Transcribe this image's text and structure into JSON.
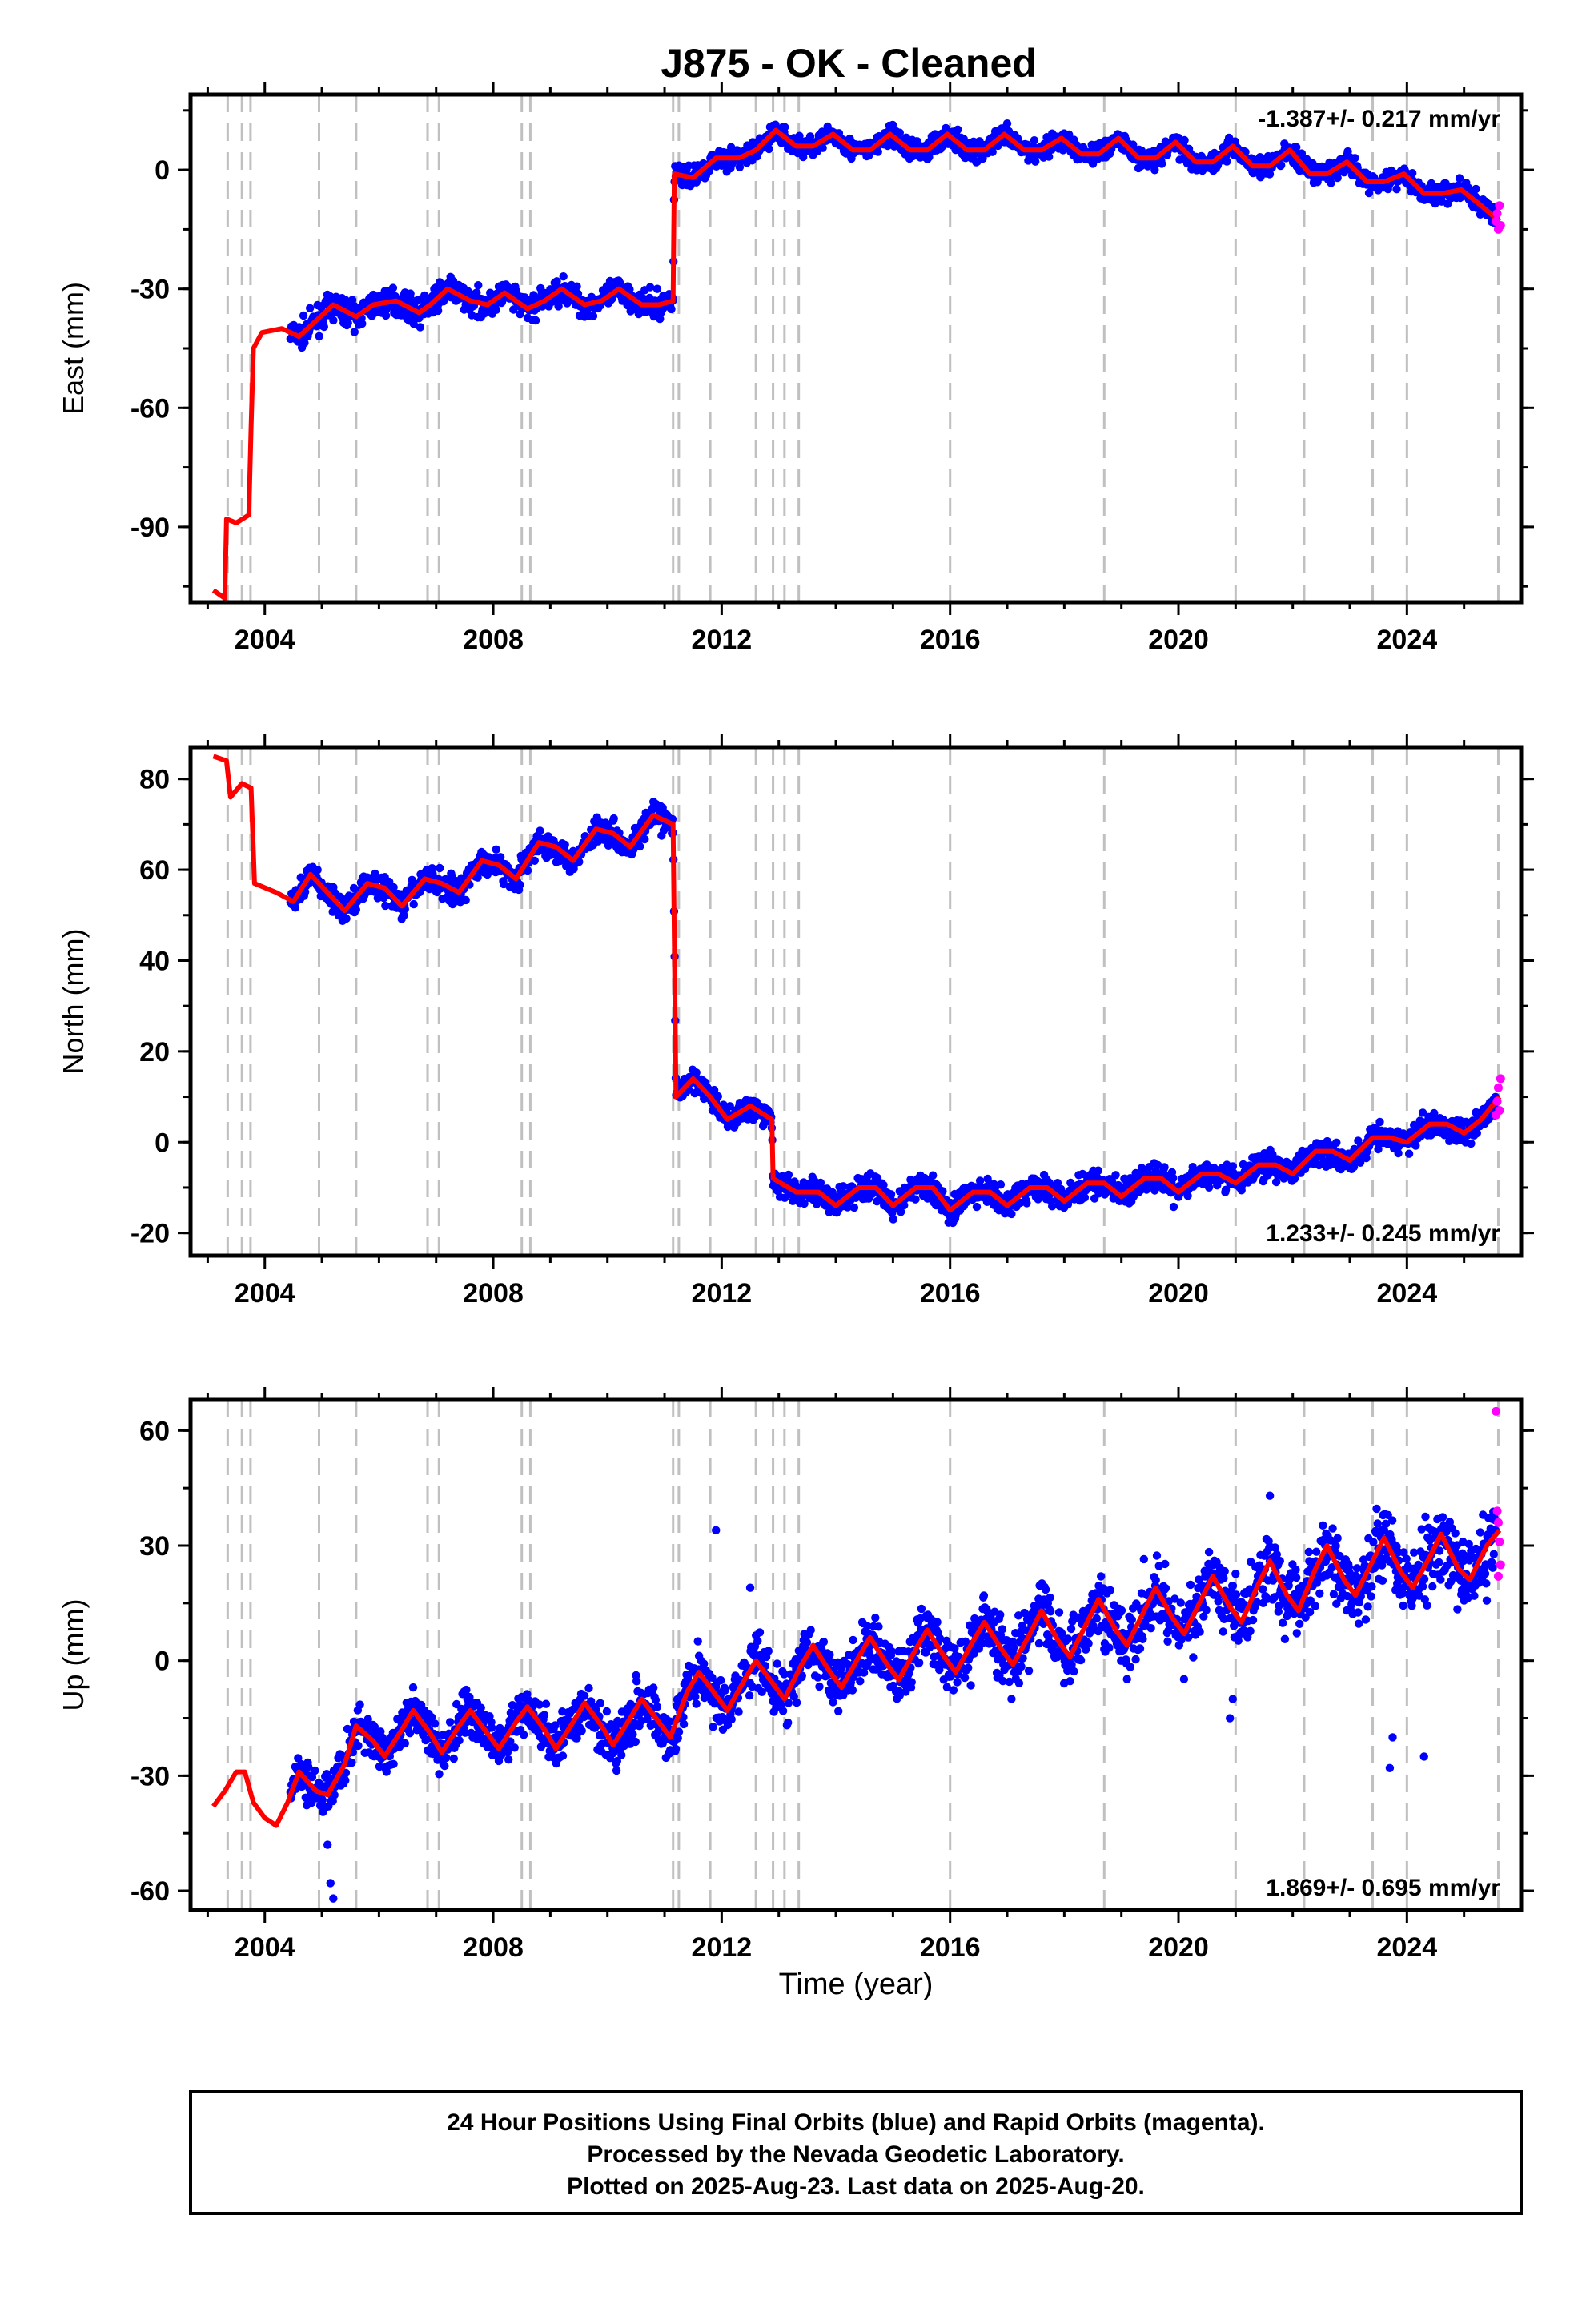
{
  "chart_data": {
    "type": "scatter",
    "title": "J875  - OK - Cleaned",
    "xlabel": "Time (year)",
    "xlim": [
      2002.7,
      2026.0
    ],
    "x_ticks": [
      2004,
      2008,
      2012,
      2016,
      2020,
      2024
    ],
    "colors": {
      "final": "#0000ff",
      "rapid": "#ff00ff",
      "model": "#ff0000",
      "event_lines": "#c0c0c0"
    },
    "event_lines": [
      2003.35,
      2003.6,
      2003.75,
      2004.95,
      2005.6,
      2006.85,
      2007.05,
      2008.5,
      2008.65,
      2011.15,
      2011.25,
      2011.8,
      2012.6,
      2012.9,
      2013.1,
      2013.35,
      2016.0,
      2018.7,
      2021.0,
      2022.2,
      2023.4,
      2024.0,
      2025.6
    ],
    "panels": [
      {
        "ylabel": "East (mm)",
        "ylim": [
          -109,
          19
        ],
        "y_ticks": [
          0,
          -30,
          -60,
          -90
        ],
        "rate": "-1.387+/- 0.217 mm/yr",
        "rate_position": "top-right",
        "model": [
          [
            2003.1,
            -106
          ],
          [
            2003.3,
            -108
          ],
          [
            2003.33,
            -88
          ],
          [
            2003.5,
            -89
          ],
          [
            2003.72,
            -87
          ],
          [
            2003.76,
            -65
          ],
          [
            2003.8,
            -45
          ],
          [
            2003.95,
            -41
          ],
          [
            2004.3,
            -40
          ],
          [
            2004.6,
            -42
          ],
          [
            2004.9,
            -38
          ],
          [
            2005.2,
            -34
          ],
          [
            2005.6,
            -37
          ],
          [
            2005.9,
            -34
          ],
          [
            2006.3,
            -33
          ],
          [
            2006.7,
            -36
          ],
          [
            2006.9,
            -34
          ],
          [
            2007.2,
            -30
          ],
          [
            2007.6,
            -33
          ],
          [
            2007.9,
            -34
          ],
          [
            2008.2,
            -31
          ],
          [
            2008.6,
            -35
          ],
          [
            2008.9,
            -33
          ],
          [
            2009.2,
            -30
          ],
          [
            2009.6,
            -34
          ],
          [
            2009.9,
            -33
          ],
          [
            2010.2,
            -30
          ],
          [
            2010.6,
            -34
          ],
          [
            2010.9,
            -34
          ],
          [
            2011.15,
            -33
          ],
          [
            2011.17,
            -1
          ],
          [
            2011.5,
            -2
          ],
          [
            2011.9,
            3
          ],
          [
            2012.3,
            3
          ],
          [
            2012.6,
            5
          ],
          [
            2012.95,
            10
          ],
          [
            2013.3,
            6
          ],
          [
            2013.6,
            6
          ],
          [
            2013.95,
            9
          ],
          [
            2014.3,
            5
          ],
          [
            2014.6,
            5
          ],
          [
            2014.95,
            9
          ],
          [
            2015.3,
            5
          ],
          [
            2015.6,
            5
          ],
          [
            2015.95,
            9
          ],
          [
            2016.3,
            5
          ],
          [
            2016.6,
            5
          ],
          [
            2016.95,
            9
          ],
          [
            2017.3,
            5
          ],
          [
            2017.6,
            5
          ],
          [
            2017.95,
            8
          ],
          [
            2018.3,
            4
          ],
          [
            2018.6,
            4
          ],
          [
            2018.95,
            8
          ],
          [
            2019.3,
            3
          ],
          [
            2019.6,
            3
          ],
          [
            2019.95,
            7
          ],
          [
            2020.3,
            2
          ],
          [
            2020.6,
            2
          ],
          [
            2020.95,
            6
          ],
          [
            2021.3,
            1
          ],
          [
            2021.6,
            1
          ],
          [
            2021.95,
            5
          ],
          [
            2022.3,
            -1
          ],
          [
            2022.6,
            -1
          ],
          [
            2022.95,
            2
          ],
          [
            2023.3,
            -3
          ],
          [
            2023.6,
            -3
          ],
          [
            2023.95,
            -1
          ],
          [
            2024.3,
            -6
          ],
          [
            2024.6,
            -6
          ],
          [
            2024.95,
            -5
          ],
          [
            2025.3,
            -9
          ],
          [
            2025.62,
            -13
          ]
        ],
        "data": {
          "x_start": 2004.45,
          "x_end": 2025.55,
          "jump_year": 2011.17,
          "before": {
            "intercept": -38,
            "slope": 0.8,
            "annual_amp": 2.0,
            "scatter": 2.5
          },
          "after": {
            "intercept": 2,
            "slope": -0.4,
            "annual_amp": 2.5,
            "scatter": 2.0
          },
          "rapid": [
            [
              2025.56,
              -13
            ],
            [
              2025.58,
              -11
            ],
            [
              2025.6,
              -15
            ],
            [
              2025.62,
              -9
            ],
            [
              2025.64,
              -14
            ]
          ]
        }
      },
      {
        "ylabel": "North (mm)",
        "ylim": [
          -25,
          87
        ],
        "y_ticks": [
          80,
          60,
          40,
          20,
          0,
          -20
        ],
        "rate": "1.233+/- 0.245 mm/yr",
        "rate_position": "bottom-right",
        "model": [
          [
            2003.1,
            85
          ],
          [
            2003.33,
            84
          ],
          [
            2003.4,
            76
          ],
          [
            2003.6,
            79
          ],
          [
            2003.76,
            78
          ],
          [
            2003.82,
            57
          ],
          [
            2004.2,
            55
          ],
          [
            2004.5,
            53
          ],
          [
            2004.8,
            59
          ],
          [
            2005.1,
            55
          ],
          [
            2005.4,
            51
          ],
          [
            2005.8,
            57
          ],
          [
            2006.1,
            56
          ],
          [
            2006.4,
            52
          ],
          [
            2006.8,
            58
          ],
          [
            2007.1,
            57
          ],
          [
            2007.4,
            55
          ],
          [
            2007.8,
            62
          ],
          [
            2008.1,
            61
          ],
          [
            2008.4,
            58
          ],
          [
            2008.8,
            66
          ],
          [
            2009.1,
            65
          ],
          [
            2009.4,
            62
          ],
          [
            2009.8,
            69
          ],
          [
            2010.1,
            68
          ],
          [
            2010.4,
            65
          ],
          [
            2010.8,
            72
          ],
          [
            2011.15,
            70
          ],
          [
            2011.2,
            10
          ],
          [
            2011.5,
            14
          ],
          [
            2011.8,
            10
          ],
          [
            2012.1,
            5
          ],
          [
            2012.5,
            8
          ],
          [
            2012.88,
            5
          ],
          [
            2012.9,
            -8
          ],
          [
            2013.3,
            -11
          ],
          [
            2013.7,
            -11
          ],
          [
            2014.0,
            -14
          ],
          [
            2014.4,
            -10
          ],
          [
            2014.7,
            -10
          ],
          [
            2015.0,
            -14
          ],
          [
            2015.4,
            -10
          ],
          [
            2015.7,
            -10
          ],
          [
            2016.0,
            -15
          ],
          [
            2016.4,
            -11
          ],
          [
            2016.7,
            -11
          ],
          [
            2017.0,
            -14
          ],
          [
            2017.4,
            -10
          ],
          [
            2017.7,
            -10
          ],
          [
            2018.0,
            -13
          ],
          [
            2018.4,
            -9
          ],
          [
            2018.7,
            -9
          ],
          [
            2019.0,
            -12
          ],
          [
            2019.4,
            -8
          ],
          [
            2019.7,
            -8
          ],
          [
            2020.0,
            -11
          ],
          [
            2020.4,
            -7
          ],
          [
            2020.7,
            -7
          ],
          [
            2021.0,
            -9
          ],
          [
            2021.4,
            -5
          ],
          [
            2021.7,
            -5
          ],
          [
            2022.0,
            -7
          ],
          [
            2022.4,
            -2
          ],
          [
            2022.7,
            -2
          ],
          [
            2023.0,
            -4
          ],
          [
            2023.4,
            1
          ],
          [
            2023.7,
            1
          ],
          [
            2024.0,
            0
          ],
          [
            2024.4,
            4
          ],
          [
            2024.7,
            4
          ],
          [
            2025.0,
            2
          ],
          [
            2025.3,
            5
          ],
          [
            2025.62,
            10
          ]
        ],
        "data": {
          "x_start": 2004.45,
          "x_end": 2025.55,
          "rapid": [
            [
              2025.56,
              6
            ],
            [
              2025.58,
              9
            ],
            [
              2025.6,
              12
            ],
            [
              2025.62,
              7
            ],
            [
              2025.64,
              14
            ]
          ]
        }
      },
      {
        "ylabel": "Up (mm)",
        "ylim": [
          -65,
          68
        ],
        "y_ticks": [
          60,
          30,
          0,
          -30,
          -60
        ],
        "rate": "1.869+/- 0.695 mm/yr",
        "rate_position": "bottom-right",
        "model": [
          [
            2003.1,
            -38
          ],
          [
            2003.3,
            -34
          ],
          [
            2003.5,
            -29
          ],
          [
            2003.65,
            -29
          ],
          [
            2003.8,
            -37
          ],
          [
            2004.0,
            -41
          ],
          [
            2004.2,
            -43
          ],
          [
            2004.4,
            -37
          ],
          [
            2004.6,
            -29
          ],
          [
            2004.9,
            -34
          ],
          [
            2005.1,
            -35
          ],
          [
            2005.4,
            -27
          ],
          [
            2005.6,
            -17
          ],
          [
            2005.9,
            -21
          ],
          [
            2006.1,
            -25
          ],
          [
            2006.4,
            -18
          ],
          [
            2006.6,
            -13
          ],
          [
            2006.9,
            -19
          ],
          [
            2007.1,
            -24
          ],
          [
            2007.4,
            -17
          ],
          [
            2007.6,
            -13
          ],
          [
            2007.9,
            -19
          ],
          [
            2008.1,
            -23
          ],
          [
            2008.4,
            -16
          ],
          [
            2008.6,
            -12
          ],
          [
            2008.9,
            -18
          ],
          [
            2009.1,
            -23
          ],
          [
            2009.4,
            -16
          ],
          [
            2009.6,
            -11
          ],
          [
            2009.9,
            -17
          ],
          [
            2010.1,
            -22
          ],
          [
            2010.4,
            -15
          ],
          [
            2010.6,
            -10
          ],
          [
            2010.9,
            -16
          ],
          [
            2011.1,
            -20
          ],
          [
            2011.4,
            -8
          ],
          [
            2011.6,
            -3
          ],
          [
            2011.9,
            -9
          ],
          [
            2012.1,
            -13
          ],
          [
            2012.4,
            -5
          ],
          [
            2012.6,
            0
          ],
          [
            2012.9,
            -6
          ],
          [
            2013.1,
            -10
          ],
          [
            2013.4,
            -1
          ],
          [
            2013.6,
            4
          ],
          [
            2013.9,
            -3
          ],
          [
            2014.1,
            -7
          ],
          [
            2014.4,
            1
          ],
          [
            2014.6,
            6
          ],
          [
            2014.9,
            -1
          ],
          [
            2015.1,
            -5
          ],
          [
            2015.4,
            3
          ],
          [
            2015.6,
            8
          ],
          [
            2015.9,
            1
          ],
          [
            2016.1,
            -3
          ],
          [
            2016.4,
            5
          ],
          [
            2016.6,
            10
          ],
          [
            2016.9,
            3
          ],
          [
            2017.1,
            -1
          ],
          [
            2017.4,
            7
          ],
          [
            2017.6,
            13
          ],
          [
            2017.9,
            5
          ],
          [
            2018.1,
            1
          ],
          [
            2018.4,
            10
          ],
          [
            2018.6,
            16
          ],
          [
            2018.9,
            8
          ],
          [
            2019.1,
            4
          ],
          [
            2019.4,
            13
          ],
          [
            2019.6,
            19
          ],
          [
            2019.9,
            11
          ],
          [
            2020.1,
            7
          ],
          [
            2020.4,
            16
          ],
          [
            2020.6,
            22
          ],
          [
            2020.9,
            14
          ],
          [
            2021.1,
            10
          ],
          [
            2021.4,
            20
          ],
          [
            2021.6,
            26
          ],
          [
            2021.9,
            17
          ],
          [
            2022.1,
            13
          ],
          [
            2022.4,
            24
          ],
          [
            2022.6,
            30
          ],
          [
            2022.9,
            21
          ],
          [
            2023.1,
            17
          ],
          [
            2023.4,
            26
          ],
          [
            2023.6,
            32
          ],
          [
            2023.9,
            23
          ],
          [
            2024.1,
            19
          ],
          [
            2024.4,
            27
          ],
          [
            2024.6,
            33
          ],
          [
            2024.9,
            24
          ],
          [
            2025.1,
            21
          ],
          [
            2025.4,
            30
          ],
          [
            2025.62,
            34
          ]
        ],
        "data": {
          "x_start": 2004.45,
          "x_end": 2025.55,
          "outliers": [
            [
              2005.15,
              -58
            ],
            [
              2005.2,
              -62
            ],
            [
              2011.9,
              34
            ],
            [
              2020.9,
              -15
            ],
            [
              2020.95,
              -10
            ],
            [
              2023.7,
              -28
            ],
            [
              2023.75,
              -20
            ],
            [
              2024.3,
              -25
            ],
            [
              2021.6,
              43
            ],
            [
              2012.5,
              19
            ],
            [
              2005.1,
              -48
            ]
          ],
          "rapid": [
            [
              2025.56,
              65
            ],
            [
              2025.58,
              39
            ],
            [
              2025.6,
              36
            ],
            [
              2025.62,
              31
            ],
            [
              2025.64,
              25
            ],
            [
              2025.6,
              22
            ]
          ]
        }
      }
    ]
  },
  "footer": {
    "line1": "24 Hour Positions Using Final Orbits (blue) and Rapid Orbits (magenta).",
    "line2": "Processed by the Nevada Geodetic Laboratory.",
    "line3": "Plotted on 2025-Aug-23. Last data on 2025-Aug-20."
  }
}
